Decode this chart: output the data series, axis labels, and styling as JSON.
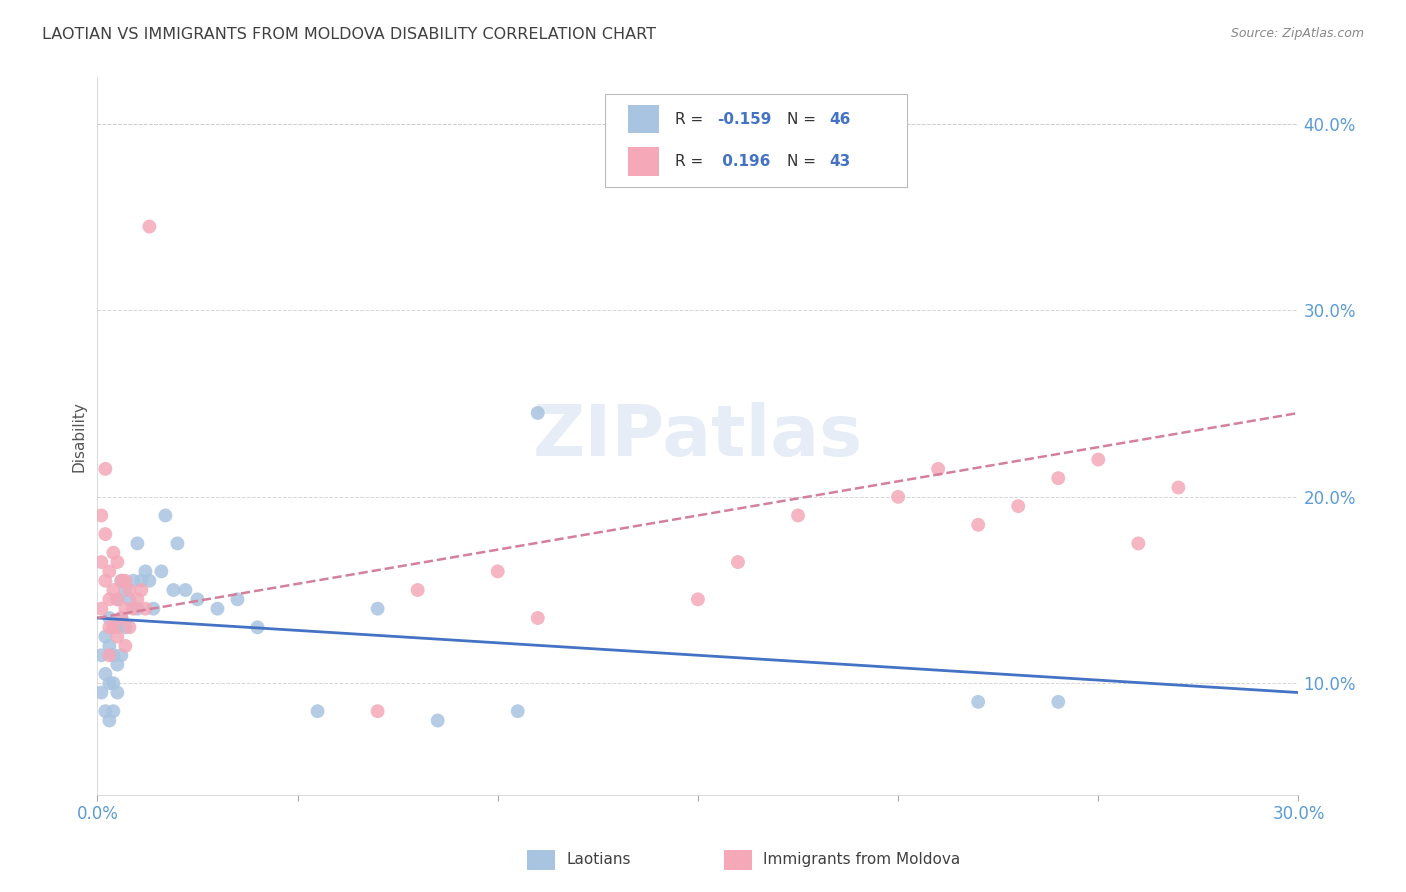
{
  "title": "LAOTIAN VS IMMIGRANTS FROM MOLDOVA DISABILITY CORRELATION CHART",
  "source": "Source: ZipAtlas.com",
  "ylabel": "Disability",
  "xlim": [
    0.0,
    0.3
  ],
  "ylim": [
    0.04,
    0.425
  ],
  "xticks": [
    0.0,
    0.05,
    0.1,
    0.15,
    0.2,
    0.25,
    0.3
  ],
  "xtick_labels": [
    "0.0%",
    "",
    "",
    "",
    "",
    "",
    "30.0%"
  ],
  "yticks": [
    0.1,
    0.2,
    0.3,
    0.4
  ],
  "ytick_labels": [
    "10.0%",
    "20.0%",
    "30.0%",
    "40.0%"
  ],
  "laotian_R": -0.159,
  "laotian_N": 46,
  "moldova_R": 0.196,
  "moldova_N": 43,
  "laotian_color": "#a8c4e0",
  "moldova_color": "#f4a8b8",
  "laotian_line_color": "#4472c4",
  "moldova_line_color": "#d4809a",
  "background_color": "#ffffff",
  "grid_color": "#cccccc",
  "title_color": "#404040",
  "axis_color": "#5b9bd5",
  "watermark": "ZIPatlas",
  "laotian_x": [
    0.001,
    0.001,
    0.002,
    0.002,
    0.002,
    0.003,
    0.003,
    0.003,
    0.003,
    0.004,
    0.004,
    0.004,
    0.004,
    0.005,
    0.005,
    0.005,
    0.005,
    0.006,
    0.006,
    0.006,
    0.007,
    0.007,
    0.008,
    0.009,
    0.01,
    0.01,
    0.011,
    0.012,
    0.013,
    0.014,
    0.016,
    0.017,
    0.019,
    0.02,
    0.022,
    0.025,
    0.03,
    0.035,
    0.04,
    0.055,
    0.07,
    0.085,
    0.105,
    0.11,
    0.22,
    0.24
  ],
  "laotian_y": [
    0.115,
    0.095,
    0.125,
    0.105,
    0.085,
    0.135,
    0.12,
    0.1,
    0.08,
    0.13,
    0.115,
    0.1,
    0.085,
    0.145,
    0.13,
    0.11,
    0.095,
    0.155,
    0.135,
    0.115,
    0.15,
    0.13,
    0.145,
    0.155,
    0.175,
    0.14,
    0.155,
    0.16,
    0.155,
    0.14,
    0.16,
    0.19,
    0.15,
    0.175,
    0.15,
    0.145,
    0.14,
    0.145,
    0.13,
    0.085,
    0.14,
    0.08,
    0.085,
    0.245,
    0.09,
    0.09
  ],
  "moldova_x": [
    0.001,
    0.001,
    0.001,
    0.002,
    0.002,
    0.002,
    0.003,
    0.003,
    0.003,
    0.003,
    0.004,
    0.004,
    0.004,
    0.005,
    0.005,
    0.005,
    0.006,
    0.006,
    0.007,
    0.007,
    0.007,
    0.008,
    0.008,
    0.009,
    0.01,
    0.011,
    0.012,
    0.013,
    0.07,
    0.08,
    0.1,
    0.11,
    0.15,
    0.16,
    0.175,
    0.2,
    0.21,
    0.22,
    0.23,
    0.24,
    0.25,
    0.26,
    0.27
  ],
  "moldova_y": [
    0.19,
    0.165,
    0.14,
    0.215,
    0.18,
    0.155,
    0.16,
    0.145,
    0.13,
    0.115,
    0.17,
    0.15,
    0.13,
    0.165,
    0.145,
    0.125,
    0.155,
    0.135,
    0.155,
    0.14,
    0.12,
    0.15,
    0.13,
    0.14,
    0.145,
    0.15,
    0.14,
    0.345,
    0.085,
    0.15,
    0.16,
    0.135,
    0.145,
    0.165,
    0.19,
    0.2,
    0.215,
    0.185,
    0.195,
    0.21,
    0.22,
    0.175,
    0.205
  ],
  "laotian_trend_x": [
    0.0,
    0.3
  ],
  "laotian_trend_y": [
    0.135,
    0.095
  ],
  "moldova_trend_x": [
    0.0,
    0.3
  ],
  "moldova_trend_y": [
    0.135,
    0.245
  ]
}
